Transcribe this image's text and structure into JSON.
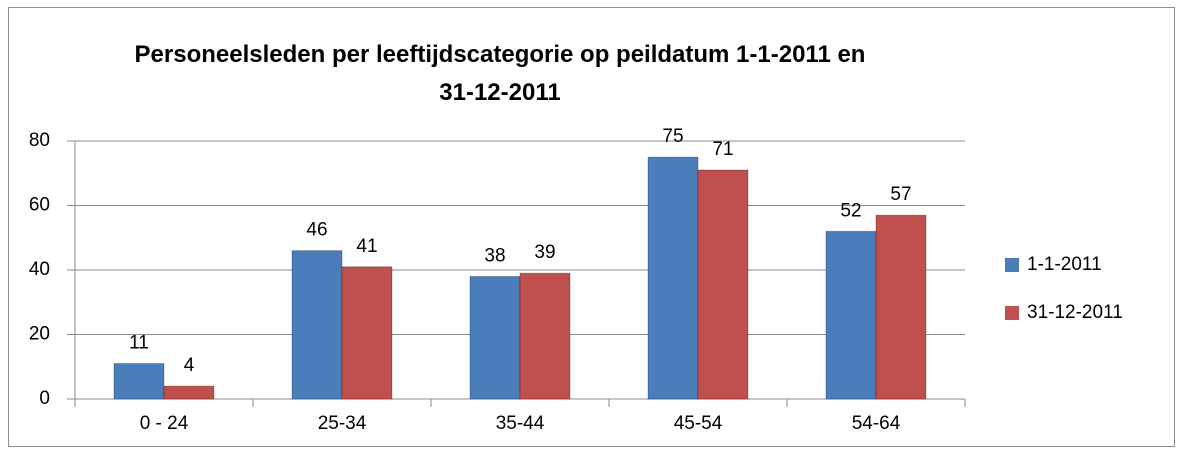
{
  "chart_data": {
    "type": "bar",
    "title": "Personeelsleden per leeftijdscategorie op peildatum 1-1-2011 en 31-12-2011",
    "categories": [
      "0 - 24",
      "25-34",
      "35-44",
      "45-54",
      "54-64"
    ],
    "series": [
      {
        "name": "1-1-2011",
        "color": "#4a7ebb",
        "values": [
          11,
          46,
          38,
          75,
          52
        ]
      },
      {
        "name": "31-12-2011",
        "color": "#c0504d",
        "values": [
          4,
          41,
          39,
          71,
          57
        ]
      }
    ],
    "ylim": [
      0,
      80
    ],
    "yticks": [
      0,
      20,
      40,
      60,
      80
    ],
    "grid": true,
    "legend": "right"
  }
}
